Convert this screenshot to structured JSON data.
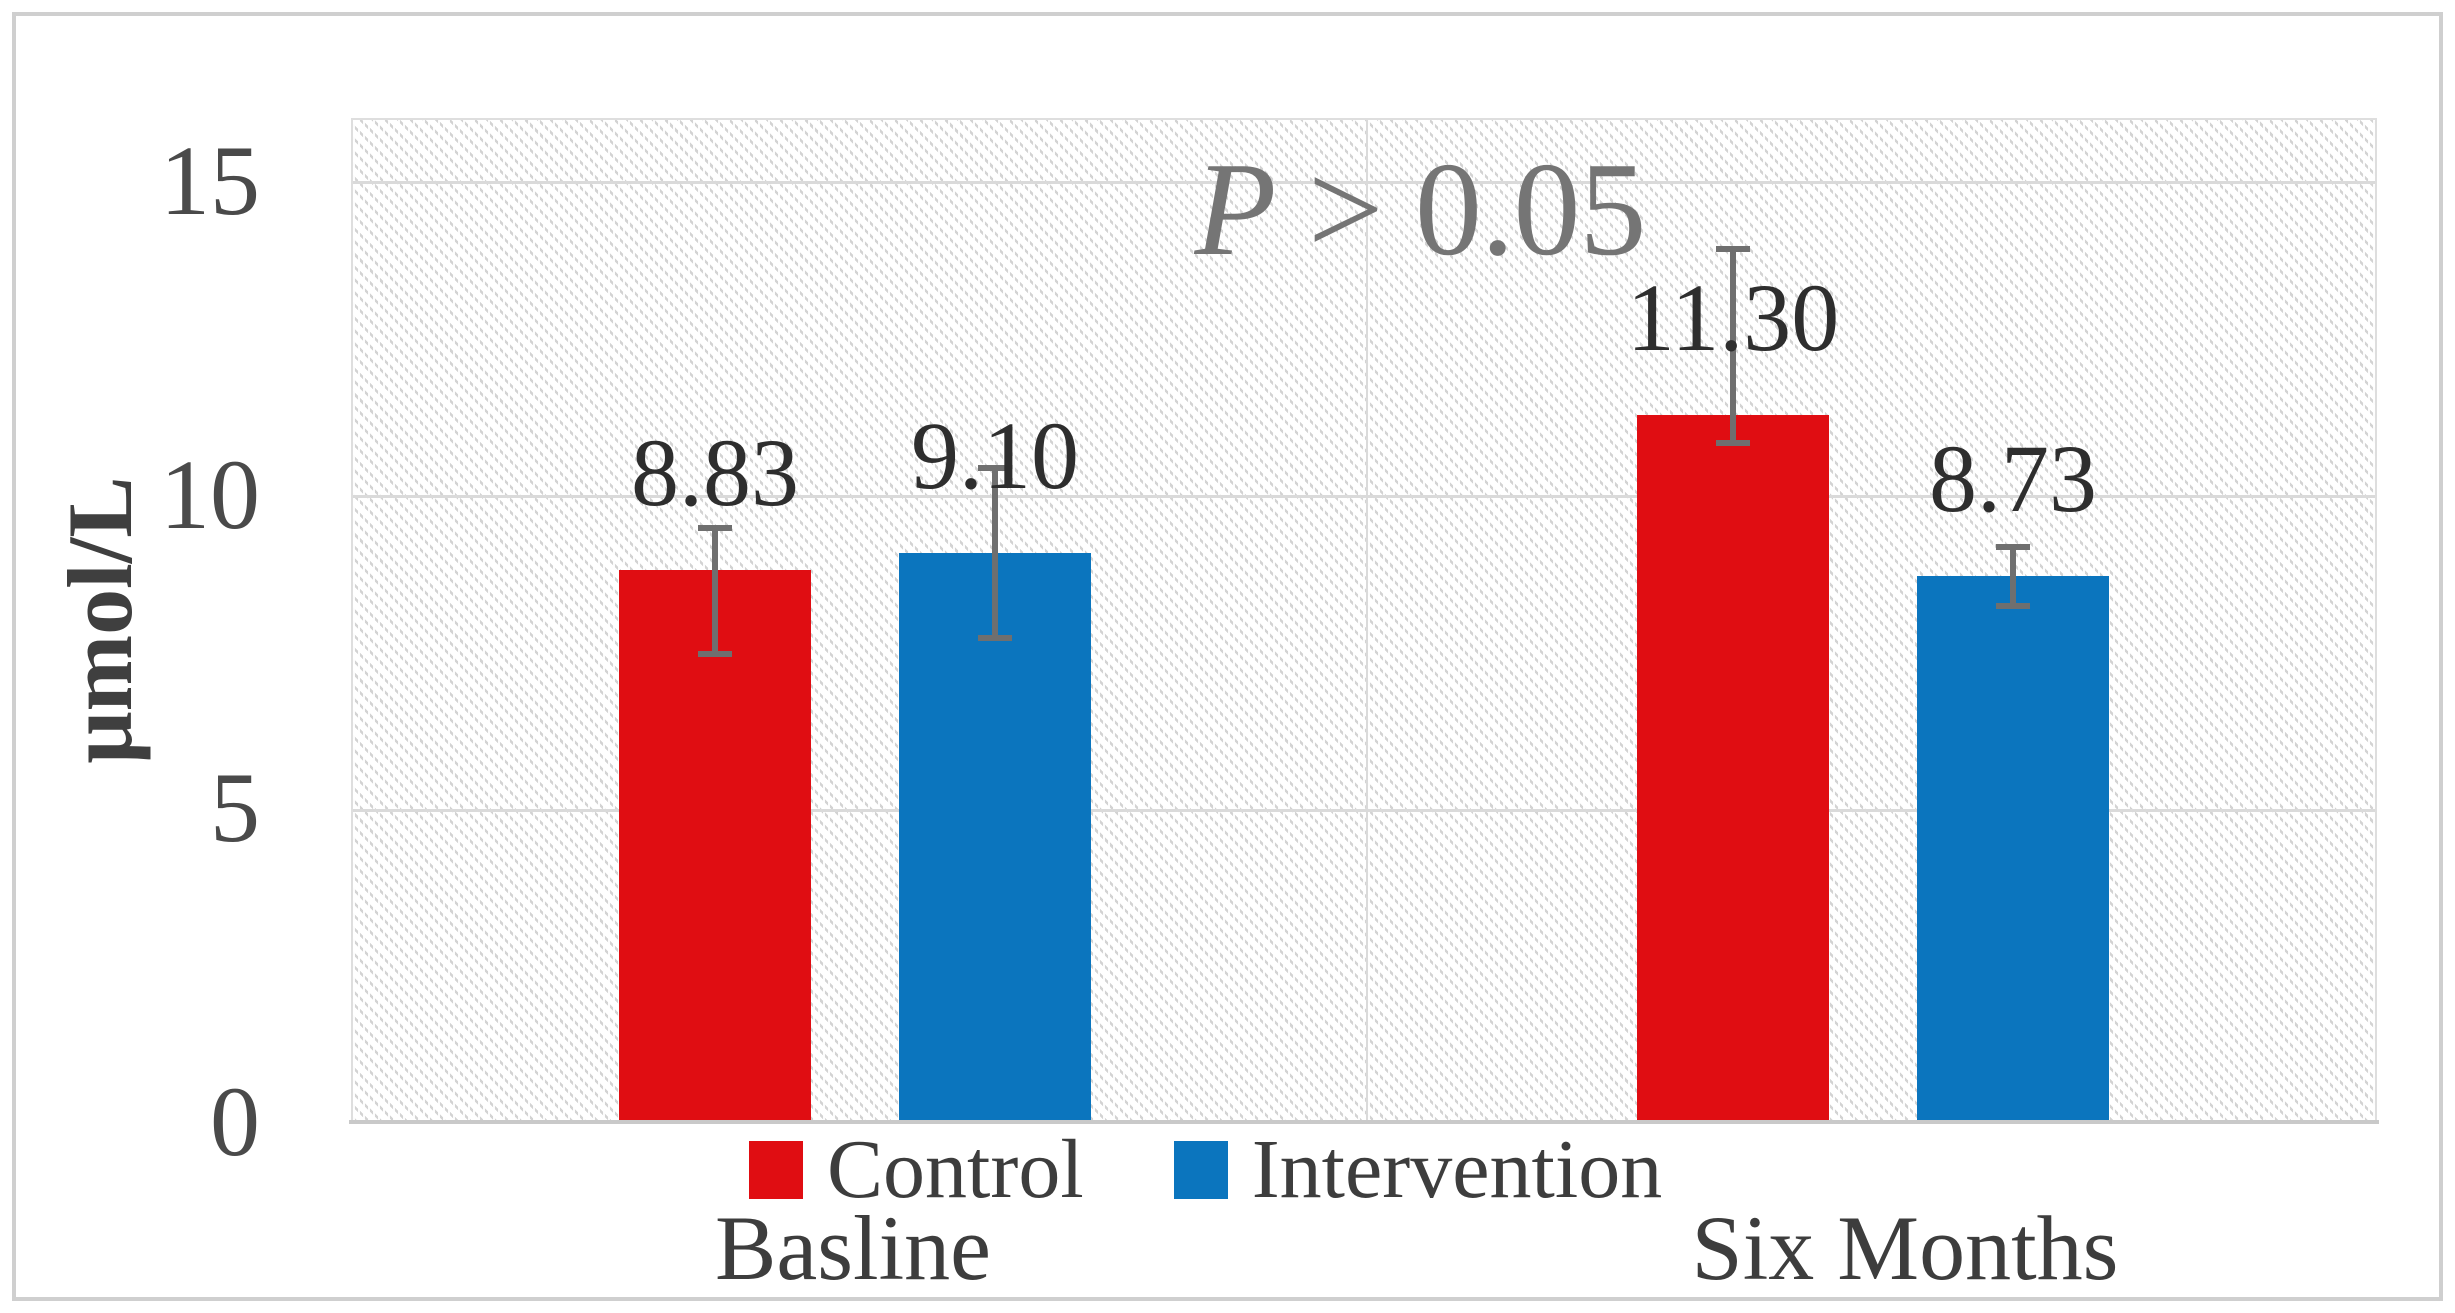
{
  "figure": {
    "y_axis_title": "μmol/L",
    "annotation_prefix": "P",
    "annotation_rest": " > 0.05"
  },
  "chart_data": {
    "type": "bar",
    "title": "",
    "xlabel": "",
    "ylabel": "μmol/L",
    "categories": [
      "Basline",
      "Six Months"
    ],
    "series": [
      {
        "name": "Control",
        "color": "#e00d12",
        "values": [
          8.83,
          11.3
        ],
        "value_labels": [
          "8.83",
          "11.30"
        ],
        "error_high": [
          9.55,
          14.0
        ],
        "error_low": [
          7.45,
          10.8
        ]
      },
      {
        "name": "Intervention",
        "color": "#0b75be",
        "values": [
          9.1,
          8.73
        ],
        "value_labels": [
          "9.10",
          "8.73"
        ],
        "error_high": [
          10.5,
          9.25
        ],
        "error_low": [
          7.7,
          8.2
        ]
      }
    ],
    "ylim": [
      0,
      16
    ],
    "yticks": [
      0,
      5,
      10,
      15
    ],
    "grid": true,
    "plot_background": "diagonal-hatch",
    "legend_position": "bottom",
    "annotation": "P > 0.05",
    "colors": {
      "error_bar": "#6f6f6f",
      "gridline": "#dadada",
      "axis_line": "#c9c9c9",
      "tick_text": "#4a4a4a",
      "value_text": "#2e2e2e",
      "category_text": "#3d3d3d",
      "annotation_text": "#757575"
    }
  }
}
